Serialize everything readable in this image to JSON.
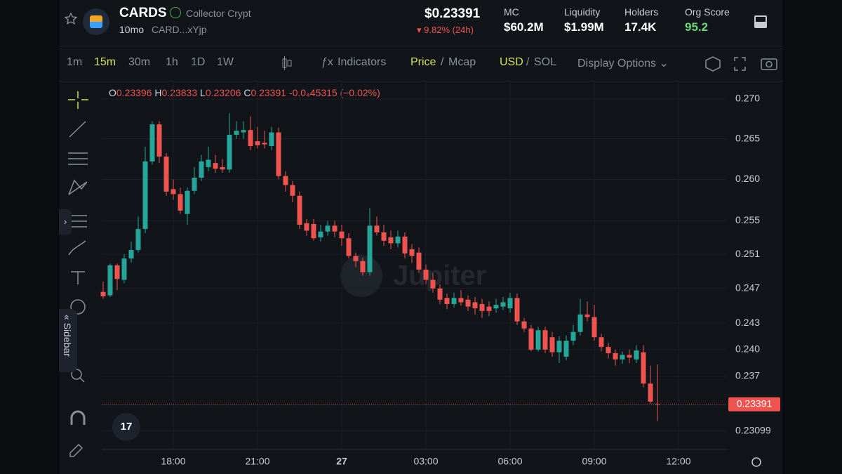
{
  "header": {
    "token": "CARDS",
    "name": "Collector Crypt",
    "age": "10mo",
    "address": "CARD...xYjp",
    "price": "$0.23391",
    "change": "9.82% (24h)",
    "stats": [
      {
        "label": "MC",
        "value": "$60.2M"
      },
      {
        "label": "Liquidity",
        "value": "$1.99M"
      },
      {
        "label": "Holders",
        "value": "17.4K"
      },
      {
        "label": "Org Score",
        "value": "95.2"
      }
    ]
  },
  "toolbar": {
    "intervals": [
      "1m",
      "15m",
      "30m",
      "1h",
      "1D",
      "1W"
    ],
    "indicators": "Indicators",
    "price": "Price",
    "mcap": "Mcap",
    "usd": "USD",
    "sol": "SOL",
    "display": "Display Options"
  },
  "sidebar": "Sidebar",
  "watermark": "Jupiter",
  "chart_data": {
    "type": "candlestick",
    "log_scale": true,
    "grid": true,
    "up_color": "#26a69a",
    "down_color": "#ef5350",
    "ohlc_labels": [
      "O",
      "H",
      "L",
      "C"
    ],
    "change": "-0.0₄45315 (−0.02%)",
    "x": [
      15.5,
      15.75,
      16,
      16.25,
      16.5,
      16.75,
      17,
      17.25,
      17.5,
      17.75,
      18,
      18.25,
      18.5,
      18.75,
      19,
      19.25,
      19.5,
      19.75,
      20,
      20.25,
      20.5,
      20.75,
      21,
      21.25,
      21.5,
      21.75,
      22,
      22.25,
      22.5,
      22.75,
      23,
      23.25,
      23.5,
      23.75,
      24,
      24.25,
      24.5,
      24.75,
      25,
      25.25,
      25.5,
      25.75,
      26,
      26.25,
      26.5,
      26.75,
      27,
      27.25,
      27.5,
      27.75,
      28,
      28.25,
      28.5,
      28.75,
      29,
      29.25,
      29.5,
      29.75,
      30,
      30.25,
      30.5,
      30.75,
      31,
      31.25,
      31.5,
      31.75,
      32,
      32.25,
      32.5,
      32.75,
      33,
      33.25,
      33.5,
      33.75,
      34,
      34.25,
      34.5,
      34.75,
      35,
      35.25
    ],
    "open": [
      0.2466,
      0.2462,
      0.2497,
      0.248,
      0.2505,
      0.2515,
      0.254,
      0.2622,
      0.2668,
      0.2628,
      0.2588,
      0.2582,
      0.2558,
      0.2586,
      0.2602,
      0.2615,
      0.262,
      0.2615,
      0.2612,
      0.2655,
      0.2658,
      0.2661,
      0.2647,
      0.2645,
      0.2641,
      0.2658,
      0.2604,
      0.2593,
      0.258,
      0.2547,
      0.2546,
      0.253,
      0.2537,
      0.2544,
      0.2537,
      0.2529,
      0.2508,
      0.2502,
      0.2489,
      0.2544,
      0.2536,
      0.253,
      0.2523,
      0.2531,
      0.2516,
      0.2512,
      0.2492,
      0.248,
      0.247,
      0.2459,
      0.2452,
      0.2459,
      0.2457,
      0.2454,
      0.2452,
      0.2449,
      0.2447,
      0.2449,
      0.2447,
      0.2459,
      0.2432,
      0.2424,
      0.24,
      0.2422,
      0.2414,
      0.2397,
      0.2392,
      0.241,
      0.242,
      0.244,
      0.2437,
      0.2414,
      0.2403,
      0.2396,
      0.2389,
      0.2394,
      0.2389,
      0.2397,
      0.2362,
      0.23396
    ],
    "high": [
      0.2478,
      0.2499,
      0.2499,
      0.251,
      0.2525,
      0.2555,
      0.264,
      0.2672,
      0.2672,
      0.2632,
      0.26,
      0.259,
      0.259,
      0.2615,
      0.263,
      0.264,
      0.263,
      0.2625,
      0.2682,
      0.2672,
      0.2672,
      0.2678,
      0.2665,
      0.266,
      0.2665,
      0.2664,
      0.261,
      0.2598,
      0.2585,
      0.2552,
      0.2552,
      0.2545,
      0.255,
      0.255,
      0.2545,
      0.2535,
      0.2512,
      0.2506,
      0.2565,
      0.2555,
      0.2545,
      0.2538,
      0.2538,
      0.2536,
      0.2522,
      0.2518,
      0.2498,
      0.2488,
      0.2475,
      0.2464,
      0.2465,
      0.2468,
      0.2462,
      0.246,
      0.2458,
      0.2455,
      0.2458,
      0.246,
      0.2465,
      0.2464,
      0.2436,
      0.2428,
      0.2426,
      0.2426,
      0.242,
      0.2415,
      0.2416,
      0.2428,
      0.2458,
      0.2455,
      0.2451,
      0.2418,
      0.2408,
      0.24,
      0.2398,
      0.24,
      0.2405,
      0.2405,
      0.2382,
      0.23833
    ],
    "low": [
      0.2458,
      0.246,
      0.2468,
      0.2476,
      0.25,
      0.2512,
      0.2535,
      0.2618,
      0.262,
      0.258,
      0.2575,
      0.2558,
      0.2545,
      0.2582,
      0.2598,
      0.261,
      0.2608,
      0.2608,
      0.2608,
      0.265,
      0.265,
      0.2636,
      0.2638,
      0.2638,
      0.2636,
      0.26,
      0.2585,
      0.2572,
      0.254,
      0.2532,
      0.2526,
      0.2525,
      0.2532,
      0.253,
      0.252,
      0.2505,
      0.2495,
      0.2485,
      0.2485,
      0.2532,
      0.252,
      0.2516,
      0.2518,
      0.2505,
      0.25,
      0.2488,
      0.2475,
      0.2465,
      0.2452,
      0.2446,
      0.2448,
      0.245,
      0.2444,
      0.244,
      0.2436,
      0.2438,
      0.2442,
      0.2445,
      0.2442,
      0.2428,
      0.242,
      0.2398,
      0.2398,
      0.2396,
      0.2392,
      0.2385,
      0.2388,
      0.2405,
      0.2416,
      0.2432,
      0.241,
      0.2398,
      0.239,
      0.2382,
      0.2384,
      0.2385,
      0.2385,
      0.2358,
      0.234,
      0.23206
    ],
    "close": [
      0.2461,
      0.2497,
      0.2481,
      0.2505,
      0.2515,
      0.254,
      0.2622,
      0.2668,
      0.2628,
      0.2585,
      0.2582,
      0.2562,
      0.2586,
      0.2602,
      0.2622,
      0.2624,
      0.2613,
      0.2612,
      0.2655,
      0.266,
      0.2661,
      0.2641,
      0.2642,
      0.2643,
      0.2658,
      0.2604,
      0.2593,
      0.258,
      0.2545,
      0.2538,
      0.2529,
      0.2537,
      0.2544,
      0.2537,
      0.2529,
      0.2508,
      0.2502,
      0.2489,
      0.2544,
      0.2536,
      0.2526,
      0.2523,
      0.2531,
      0.2511,
      0.2508,
      0.2492,
      0.248,
      0.247,
      0.2457,
      0.2452,
      0.2459,
      0.2454,
      0.2449,
      0.2447,
      0.2444,
      0.2444,
      0.2451,
      0.2454,
      0.2459,
      0.2432,
      0.2424,
      0.24,
      0.2422,
      0.24,
      0.2397,
      0.241,
      0.241,
      0.242,
      0.244,
      0.2437,
      0.2414,
      0.2403,
      0.2396,
      0.2389,
      0.2394,
      0.2391,
      0.2399,
      0.2362,
      0.2342,
      0.23391
    ],
    "xlim": [
      15.45,
      37.7
    ],
    "xticks": [
      {
        "value": 18,
        "label": "18:00"
      },
      {
        "value": 21,
        "label": "21:00"
      },
      {
        "value": 24,
        "label": "27"
      },
      {
        "value": 27,
        "label": "03:00"
      },
      {
        "value": 30,
        "label": "06:00"
      },
      {
        "value": 33,
        "label": "09:00"
      },
      {
        "value": 36,
        "label": "12:00"
      }
    ],
    "ylim": [
      0.229,
      0.27233
    ],
    "yticks": [
      {
        "value": 0.27,
        "label": "0.270"
      },
      0.265,
      {
        "value": 0.26,
        "label": "0.260"
      },
      0.255,
      0.251,
      0.247,
      0.243,
      {
        "value": 0.24,
        "label": "0.240"
      },
      0.237,
      0.23099
    ]
  }
}
